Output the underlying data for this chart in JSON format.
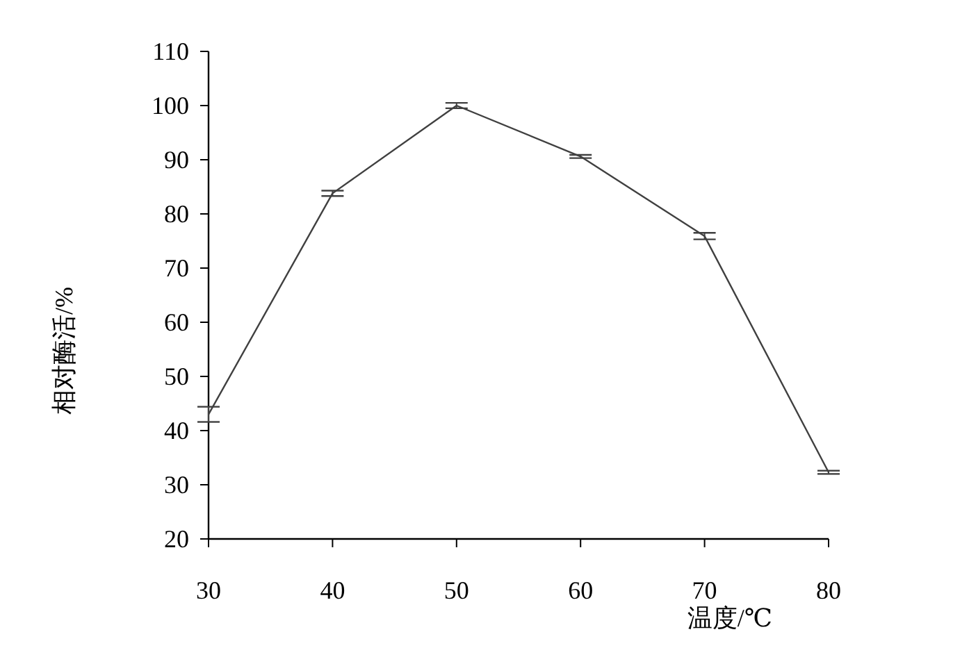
{
  "chart_data": {
    "type": "line",
    "xlabel": "温度/℃",
    "ylabel": "相对酶活/%",
    "x": [
      30,
      40,
      50,
      60,
      70,
      80
    ],
    "series": [
      {
        "color": "#404040",
        "values": [
          43.0,
          83.8,
          100.0,
          90.6,
          75.9,
          32.3
        ],
        "errors": [
          1.4,
          0.5,
          0.5,
          0.3,
          0.6,
          0.3
        ]
      }
    ],
    "xlim": [
      30,
      80
    ],
    "xticks": [
      30,
      40,
      50,
      60,
      70,
      80
    ],
    "ylim": [
      20,
      110
    ],
    "yticks": [
      20,
      30,
      40,
      50,
      60,
      70,
      80,
      90,
      100,
      110
    ],
    "grid": false,
    "marker": "none",
    "line_style": "solid"
  }
}
